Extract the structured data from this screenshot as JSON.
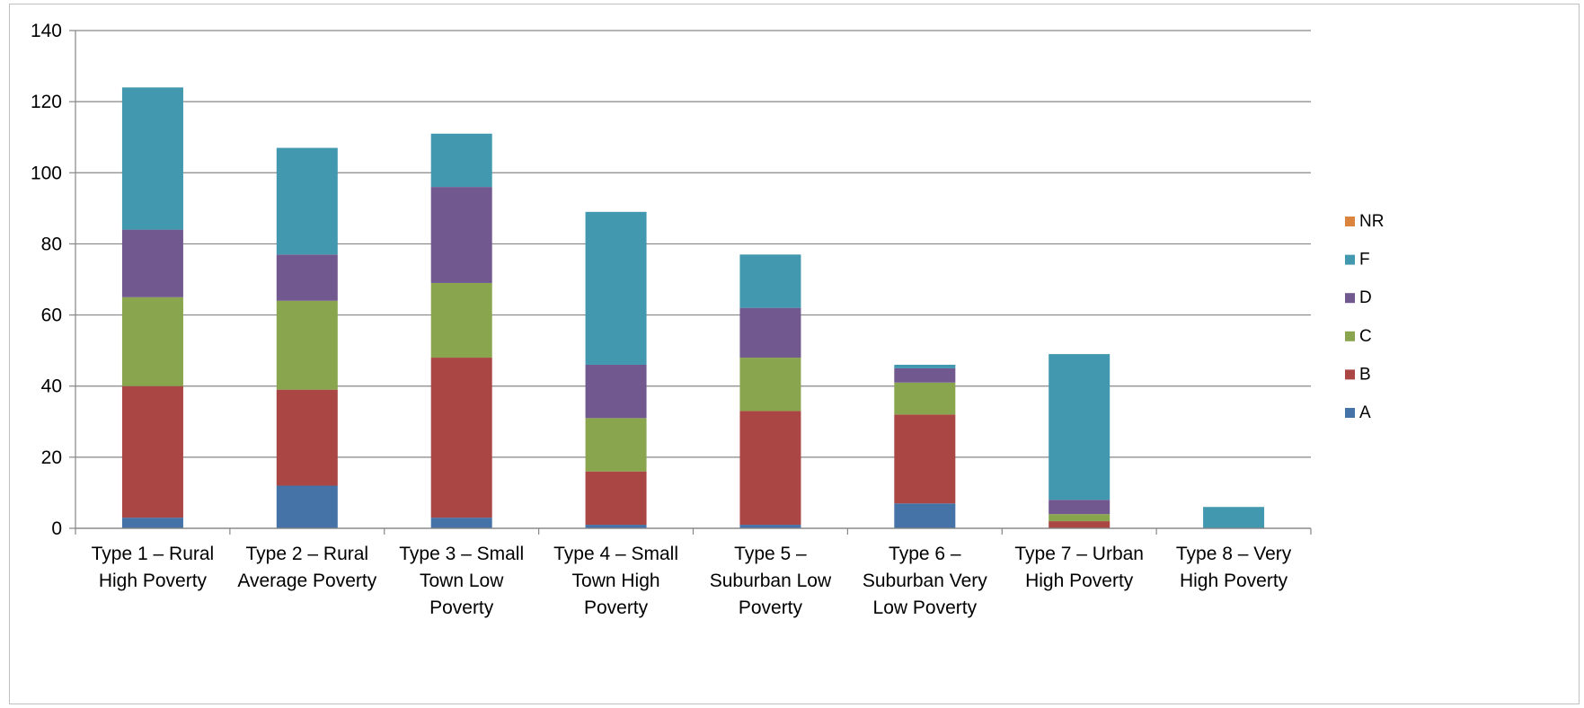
{
  "chart_data": {
    "type": "bar",
    "stacked": true,
    "title": "",
    "xlabel": "",
    "ylabel": "",
    "ylim": [
      0,
      140
    ],
    "yticks": [
      0,
      20,
      40,
      60,
      80,
      100,
      120,
      140
    ],
    "grid": true,
    "legend_position": "right",
    "categories": [
      [
        "Type 1 – Rural",
        "High Poverty"
      ],
      [
        "Type 2 – Rural",
        "Average Poverty"
      ],
      [
        "Type 3 – Small",
        "Town Low",
        "Poverty"
      ],
      [
        "Type 4 – Small",
        "Town High",
        "Poverty"
      ],
      [
        "Type 5 –",
        "Suburban Low",
        "Poverty"
      ],
      [
        "Type 6 –",
        "Suburban Very",
        "Low Poverty"
      ],
      [
        "Type 7 – Urban",
        "High Poverty"
      ],
      [
        "Type 8 – Very",
        "High Poverty"
      ]
    ],
    "series": [
      {
        "name": "A",
        "color": "#4572a7",
        "values": [
          3,
          12,
          3,
          1,
          1,
          7,
          0,
          0
        ]
      },
      {
        "name": "B",
        "color": "#aa4643",
        "values": [
          37,
          27,
          45,
          15,
          32,
          25,
          2,
          0
        ]
      },
      {
        "name": "C",
        "color": "#89a54e",
        "values": [
          25,
          25,
          21,
          15,
          15,
          9,
          2,
          0
        ]
      },
      {
        "name": "D",
        "color": "#71588f",
        "values": [
          19,
          13,
          27,
          15,
          14,
          4,
          4,
          0
        ]
      },
      {
        "name": "F",
        "color": "#4198af",
        "values": [
          40,
          30,
          15,
          43,
          15,
          1,
          41,
          6
        ]
      },
      {
        "name": "NR",
        "color": "#db843d",
        "values": [
          0,
          0,
          0,
          0,
          0,
          0,
          0,
          0
        ]
      }
    ]
  }
}
